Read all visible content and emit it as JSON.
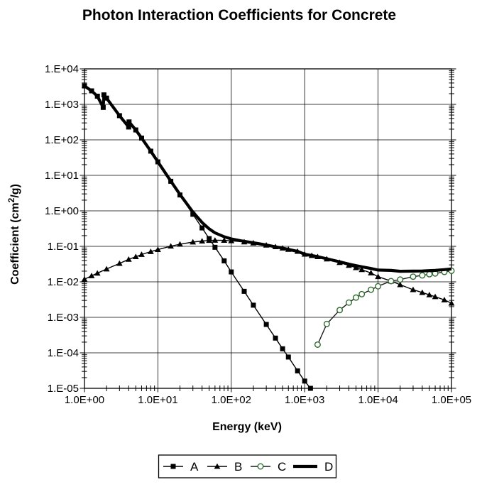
{
  "title": "Photon Interaction Coefficients for Concrete",
  "chart_data": {
    "type": "line",
    "title": "Photon Interaction Coefficients for Concrete",
    "xlabel": "Energy (keV)",
    "ylabel": {
      "prefix": "Coefficient (cm",
      "sup": "2",
      "suffix": "/g)"
    },
    "x_scale": "log",
    "y_scale": "log",
    "xlim": [
      1,
      100000
    ],
    "ylim": [
      1e-05,
      10000
    ],
    "x_tick_labels": [
      "1.0E+00",
      "1.0E+01",
      "1.0E+02",
      "1.0E+03",
      "1.0E+04",
      "1.0E+05"
    ],
    "y_tick_labels": [
      "1.E+04",
      "1.E+03",
      "1.E+02",
      "1.E+01",
      "1.E+00",
      "1.E-01",
      "1.E-02",
      "1.E-03",
      "1.E-04",
      "1.E-05"
    ],
    "grid": true,
    "legend_position": "bottom",
    "colors": {
      "background": "#ffffff",
      "grid": "#000000",
      "frame": "#000000",
      "series_default": "#000000",
      "series_c_marker": "#2e6b2e"
    },
    "series": [
      {
        "name": "A",
        "marker": "square",
        "marker_color": "#000000",
        "line_color": "#000000",
        "line_width": 1.4,
        "points": [
          [
            1,
            3300
          ],
          [
            1.25,
            2400
          ],
          [
            1.5,
            1700
          ],
          [
            1.8,
            820
          ],
          [
            1.84,
            1850
          ],
          [
            2,
            1500
          ],
          [
            3,
            480
          ],
          [
            4,
            230
          ],
          [
            4.05,
            320
          ],
          [
            5,
            190
          ],
          [
            6,
            112
          ],
          [
            8,
            48
          ],
          [
            10,
            24
          ],
          [
            15,
            6.8
          ],
          [
            20,
            2.8
          ],
          [
            30,
            0.8
          ],
          [
            40,
            0.33
          ],
          [
            50,
            0.165
          ],
          [
            60,
            0.094
          ],
          [
            80,
            0.039
          ],
          [
            100,
            0.019
          ],
          [
            150,
            0.0054
          ],
          [
            200,
            0.0022
          ],
          [
            300,
            0.00063
          ],
          [
            400,
            0.00026
          ],
          [
            500,
            0.00013
          ],
          [
            600,
            7.6e-05
          ],
          [
            800,
            3.1e-05
          ],
          [
            1000,
            1.6e-05
          ],
          [
            1200,
            1e-05
          ]
        ]
      },
      {
        "name": "B",
        "marker": "triangle",
        "marker_color": "#000000",
        "line_color": "#000000",
        "line_width": 1.4,
        "points": [
          [
            1,
            0.0118
          ],
          [
            1.25,
            0.0148
          ],
          [
            1.5,
            0.0175
          ],
          [
            2,
            0.023
          ],
          [
            3,
            0.033
          ],
          [
            4,
            0.043
          ],
          [
            5,
            0.051
          ],
          [
            6,
            0.059
          ],
          [
            8,
            0.071
          ],
          [
            10,
            0.081
          ],
          [
            15,
            0.101
          ],
          [
            20,
            0.115
          ],
          [
            30,
            0.132
          ],
          [
            40,
            0.141
          ],
          [
            50,
            0.146
          ],
          [
            60,
            0.148
          ],
          [
            80,
            0.147
          ],
          [
            100,
            0.143
          ],
          [
            150,
            0.133
          ],
          [
            200,
            0.124
          ],
          [
            300,
            0.108
          ],
          [
            400,
            0.097
          ],
          [
            500,
            0.089
          ],
          [
            600,
            0.082
          ],
          [
            800,
            0.072
          ],
          [
            1000,
            0.06
          ],
          [
            1250,
            0.055
          ],
          [
            1500,
            0.051
          ],
          [
            2000,
            0.044
          ],
          [
            3000,
            0.035
          ],
          [
            4000,
            0.029
          ],
          [
            5000,
            0.025
          ],
          [
            6000,
            0.022
          ],
          [
            8000,
            0.0178
          ],
          [
            10000,
            0.014
          ],
          [
            15000,
            0.0105
          ],
          [
            20000,
            0.0083
          ],
          [
            30000,
            0.006
          ],
          [
            40000,
            0.005
          ],
          [
            50000,
            0.0043
          ],
          [
            60000,
            0.0038
          ],
          [
            80000,
            0.0031
          ],
          [
            100000,
            0.0025
          ]
        ]
      },
      {
        "name": "C",
        "marker": "circle-open",
        "marker_color": "#2e6b2e",
        "line_color": "#1a1a1a",
        "line_width": 1.4,
        "points": [
          [
            1500,
            0.00017
          ],
          [
            2000,
            0.00065
          ],
          [
            3000,
            0.0016
          ],
          [
            4000,
            0.0026
          ],
          [
            5000,
            0.0036
          ],
          [
            6000,
            0.0045
          ],
          [
            8000,
            0.006
          ],
          [
            10000,
            0.0075
          ],
          [
            15000,
            0.0105
          ],
          [
            20000,
            0.0116
          ],
          [
            30000,
            0.014
          ],
          [
            40000,
            0.0152
          ],
          [
            50000,
            0.0164
          ],
          [
            60000,
            0.0172
          ],
          [
            80000,
            0.019
          ],
          [
            100000,
            0.0205
          ]
        ]
      },
      {
        "name": "D",
        "marker": "none",
        "marker_color": "#000000",
        "line_color": "#000000",
        "line_width": 4.2,
        "points": [
          [
            1,
            3300
          ],
          [
            1.25,
            2400
          ],
          [
            1.5,
            1700
          ],
          [
            1.8,
            820
          ],
          [
            1.84,
            1850
          ],
          [
            2,
            1500
          ],
          [
            3,
            480
          ],
          [
            4,
            230
          ],
          [
            4.05,
            320
          ],
          [
            5,
            190
          ],
          [
            6,
            112
          ],
          [
            8,
            48
          ],
          [
            10,
            24.1
          ],
          [
            15,
            6.9
          ],
          [
            20,
            2.9
          ],
          [
            30,
            0.93
          ],
          [
            40,
            0.47
          ],
          [
            50,
            0.31
          ],
          [
            60,
            0.24
          ],
          [
            80,
            0.186
          ],
          [
            100,
            0.162
          ],
          [
            150,
            0.138
          ],
          [
            200,
            0.126
          ],
          [
            300,
            0.109
          ],
          [
            400,
            0.097
          ],
          [
            500,
            0.089
          ],
          [
            600,
            0.082
          ],
          [
            800,
            0.072
          ],
          [
            1000,
            0.06
          ],
          [
            1250,
            0.055
          ],
          [
            1500,
            0.0512
          ],
          [
            2000,
            0.0447
          ],
          [
            3000,
            0.0366
          ],
          [
            4000,
            0.0316
          ],
          [
            5000,
            0.0286
          ],
          [
            6000,
            0.0265
          ],
          [
            8000,
            0.0238
          ],
          [
            10000,
            0.0215
          ],
          [
            15000,
            0.021
          ],
          [
            20000,
            0.0199
          ],
          [
            30000,
            0.02
          ],
          [
            40000,
            0.0202
          ],
          [
            50000,
            0.0207
          ],
          [
            60000,
            0.021
          ],
          [
            80000,
            0.0221
          ],
          [
            100000,
            0.023
          ]
        ]
      }
    ]
  }
}
